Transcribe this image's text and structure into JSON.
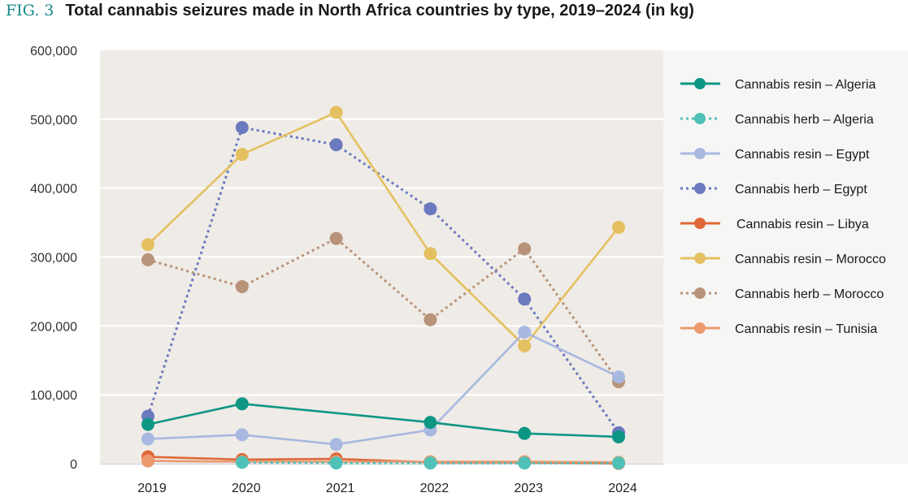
{
  "figure": {
    "label": "FIG. 3",
    "title": "Total cannabis seizures made in North Africa countries by type, 2019–2024 (in kg)"
  },
  "colors": {
    "plot_background": "#efebe6",
    "legend_background": "#f6f6f5",
    "gridline": "#ffffff",
    "fig_label": "#17888a"
  },
  "chart_data": {
    "type": "line",
    "title": "Total cannabis seizures made in North Africa countries by type, 2019–2024 (in kg)",
    "xlabel": "",
    "ylabel": "",
    "x": [
      "2019",
      "2020",
      "2021",
      "2022",
      "2023",
      "2024"
    ],
    "ylim": [
      0,
      600000
    ],
    "yticks": [
      0,
      100000,
      200000,
      300000,
      400000,
      500000,
      600000
    ],
    "ytick_labels": [
      "0",
      "100,000",
      "200,000",
      "300,000",
      "400,000",
      "500,000",
      "600,000"
    ],
    "grid": true,
    "legend_position": "right",
    "series": [
      {
        "name": "Cannabis resin – Algeria",
        "color": "#0e9684",
        "dashed": false,
        "values": [
          57000,
          87000,
          null,
          60000,
          44000,
          39000
        ],
        "interpolate_missing": true
      },
      {
        "name": "Cannabis herb – Algeria",
        "color": "#4fc1b8",
        "dashed": true,
        "values": [
          null,
          2000,
          1000,
          1000,
          1000,
          1000
        ]
      },
      {
        "name": "Cannabis resin – Egypt",
        "color": "#a9b8e0",
        "dashed": false,
        "values": [
          36000,
          42000,
          28000,
          49000,
          191000,
          126000
        ]
      },
      {
        "name": "Cannabis herb – Egypt",
        "color": "#6b79bf",
        "dashed": true,
        "values": [
          69000,
          488000,
          463000,
          370000,
          239000,
          45000
        ]
      },
      {
        "name": "Cannabis resin – Libya",
        "color": "#de6838",
        "dashed": false,
        "values": [
          10000,
          6000,
          7000,
          2000,
          2000,
          500
        ]
      },
      {
        "name": "Cannabis resin – Morocco",
        "color": "#e5c060",
        "dashed": false,
        "values": [
          318000,
          449000,
          510000,
          305000,
          171000,
          343000
        ]
      },
      {
        "name": "Cannabis herb – Morocco",
        "color": "#b8937a",
        "dashed": true,
        "values": [
          296000,
          257000,
          327000,
          209000,
          312000,
          119000
        ]
      },
      {
        "name": "Cannabis resin – Tunisia",
        "color": "#eb9a70",
        "dashed": false,
        "values": [
          4000,
          3000,
          3000,
          3000,
          3000,
          2000
        ]
      }
    ]
  }
}
